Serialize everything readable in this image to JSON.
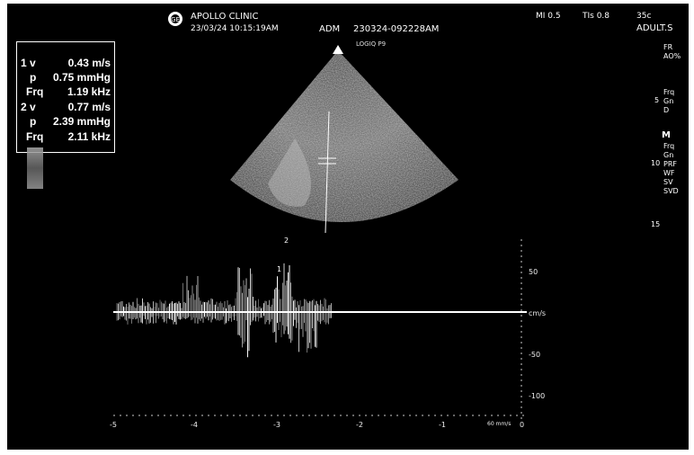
{
  "header": {
    "clinic": "APOLLO CLINIC",
    "datetime": "23/03/24 10:15:19AM",
    "operator": "ADM",
    "patient_id": "230324-092228AM",
    "mi": "MI 0.5",
    "tis": "TIs 0.8",
    "rate": "35c",
    "preset": "ADULT.S",
    "probe": "LOGIQ P9"
  },
  "measurements": [
    {
      "label": "1 v",
      "value": "0.43 m/s"
    },
    {
      "label": "p",
      "value": "0.75 mmHg"
    },
    {
      "label": "Frq",
      "value": "1.19 kHz"
    },
    {
      "label": "2 v",
      "value": "0.77 m/s"
    },
    {
      "label": "p",
      "value": "2.39 mmHg"
    },
    {
      "label": "Frq",
      "value": "2.11 kHz"
    }
  ],
  "doppler": {
    "marker1": "1",
    "marker2": "2",
    "v_ticks": [
      "50",
      "cm/s",
      "-50",
      "-100"
    ],
    "t_ticks": [
      "-5",
      "-4",
      "-3",
      "-2",
      "-1",
      "0"
    ],
    "sweep_unit": "60 mm/s"
  },
  "sidebar": [
    "FR",
    "AO%",
    "Frq",
    "Gn",
    "D",
    "Frq",
    "Gn",
    "PRF",
    "WF",
    "SV",
    "SVD"
  ],
  "sidebar_mode": "M",
  "depth": [
    "5",
    "10",
    "15"
  ],
  "colors": {
    "background": "#000000",
    "text": "#ffffff"
  }
}
